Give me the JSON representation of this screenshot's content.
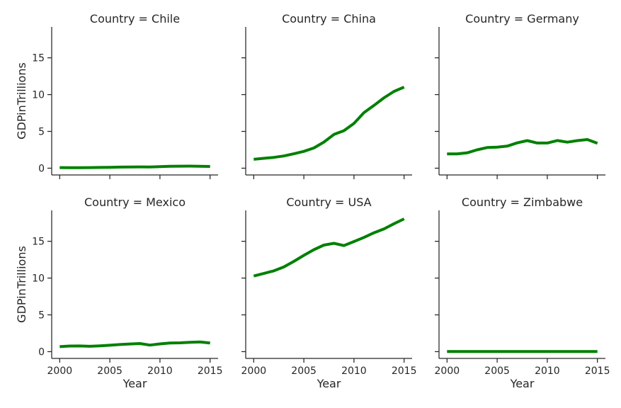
{
  "chart_data": {
    "type": "line",
    "color": "#008000",
    "xlabel": "Year",
    "ylabel": "GDPinTrillions",
    "xlim": [
      1999.2,
      2015.8
    ],
    "ylim": [
      -0.92,
      19.2
    ],
    "xticks": [
      2000,
      2005,
      2010,
      2015
    ],
    "yticks": [
      0,
      5,
      10,
      15
    ],
    "x": [
      2000,
      2001,
      2002,
      2003,
      2004,
      2005,
      2006,
      2007,
      2008,
      2009,
      2010,
      2011,
      2012,
      2013,
      2014,
      2015
    ],
    "panels": [
      {
        "title": "Country = Chile",
        "values": [
          0.08,
          0.07,
          0.07,
          0.08,
          0.1,
          0.12,
          0.15,
          0.17,
          0.18,
          0.17,
          0.22,
          0.25,
          0.27,
          0.28,
          0.26,
          0.24
        ]
      },
      {
        "title": "Country = China",
        "values": [
          1.21,
          1.34,
          1.47,
          1.66,
          1.96,
          2.29,
          2.75,
          3.55,
          4.59,
          5.1,
          6.09,
          7.55,
          8.53,
          9.57,
          10.44,
          11.02
        ]
      },
      {
        "title": "Country = Germany",
        "values": [
          1.95,
          1.95,
          2.08,
          2.5,
          2.81,
          2.86,
          3.0,
          3.44,
          3.75,
          3.42,
          3.42,
          3.76,
          3.54,
          3.75,
          3.89,
          3.38
        ]
      },
      {
        "title": "Country = Mexico",
        "values": [
          0.68,
          0.76,
          0.77,
          0.73,
          0.78,
          0.87,
          0.97,
          1.04,
          1.1,
          0.89,
          1.05,
          1.17,
          1.2,
          1.27,
          1.31,
          1.17
        ]
      },
      {
        "title": "Country = USA",
        "values": [
          10.28,
          10.62,
          10.98,
          11.51,
          12.27,
          13.09,
          13.86,
          14.48,
          14.72,
          14.42,
          14.96,
          15.52,
          16.16,
          16.69,
          17.39,
          18.04
        ]
      },
      {
        "title": "Country = Zimbabwe",
        "values": [
          0.02,
          0.02,
          0.02,
          0.02,
          0.02,
          0.02,
          0.02,
          0.02,
          0.02,
          0.02,
          0.02,
          0.02,
          0.02,
          0.02,
          0.02,
          0.02
        ]
      }
    ]
  }
}
